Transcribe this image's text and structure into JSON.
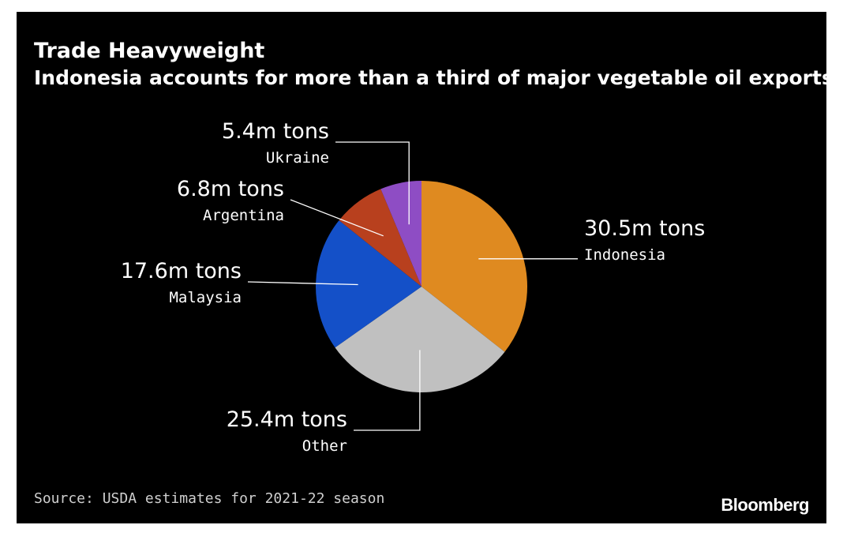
{
  "chart": {
    "title": "Trade Heavyweight",
    "subtitle": "Indonesia accounts for more than a third of major vegetable oil exports",
    "source": "Source: USDA estimates for 2021-22 season",
    "brand": "Bloomberg"
  },
  "chart_data": {
    "type": "pie",
    "title": "Trade Heavyweight",
    "subtitle": "Indonesia accounts for more than a third of major vegetable oil exports",
    "unit": "m tons",
    "slices": [
      {
        "name": "Indonesia",
        "value": 30.5,
        "label": "30.5m tons",
        "color": "#df8a20"
      },
      {
        "name": "Other",
        "value": 25.4,
        "label": "25.4m tons",
        "color": "#c0c0c0"
      },
      {
        "name": "Malaysia",
        "value": 17.6,
        "label": "17.6m tons",
        "color": "#1450c8"
      },
      {
        "name": "Argentina",
        "value": 6.8,
        "label": "6.8m tons",
        "color": "#b8401e"
      },
      {
        "name": "Ukraine",
        "value": 5.4,
        "label": "5.4m tons",
        "color": "#8e4dc4"
      }
    ],
    "start_direction": "12 o'clock",
    "order": "clockwise",
    "legend": "none",
    "background": "#000000"
  }
}
